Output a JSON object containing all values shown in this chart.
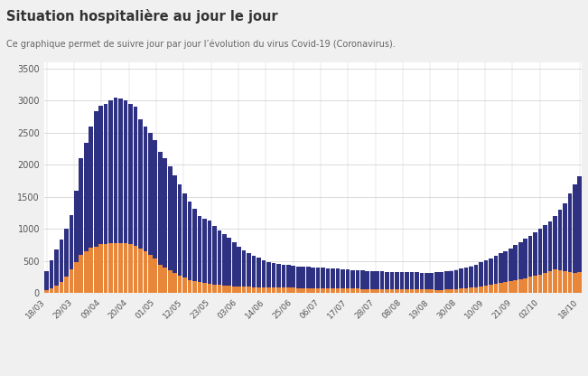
{
  "title": "Situation hospitalière au jour le jour",
  "subtitle": "Ce graphique permet de suivre jour par jour l’évolution du virus Covid-19 (Coronavirus).",
  "bg_color": "#f0f0f0",
  "plot_bg_color": "#ffffff",
  "bar_color_hosp": "#2e3182",
  "bar_color_rea": "#e8873a",
  "lissage_hosp_color": "#c8cae8",
  "lissage_rea_color": "#f5d0a9",
  "lissage_hosp_edge": "#9999cc",
  "lissage_rea_edge": "#e8a060",
  "x_labels": [
    "18/03",
    "29/03",
    "09/04",
    "20/04",
    "01/05",
    "12/05",
    "23/05",
    "03/06",
    "14/06",
    "25/06",
    "06/07",
    "17/07",
    "28/07",
    "08/08",
    "19/08",
    "30/08",
    "10/09",
    "21/09",
    "02/10",
    "18/10"
  ],
  "label_days": [
    0,
    11,
    22,
    33,
    44,
    55,
    66,
    77,
    88,
    99,
    110,
    121,
    132,
    143,
    154,
    165,
    176,
    187,
    198,
    214
  ],
  "total_days": 214,
  "ylim": [
    0,
    3600
  ],
  "yticks": [
    0,
    500,
    1000,
    1500,
    2000,
    2500,
    3000,
    3500
  ],
  "hosp": [
    350,
    520,
    680,
    830,
    1000,
    1210,
    1600,
    2100,
    2340,
    2600,
    2830,
    2920,
    2950,
    3010,
    3050,
    3030,
    3010,
    2950,
    2900,
    2710,
    2600,
    2500,
    2390,
    2200,
    2100,
    1980,
    1840,
    1700,
    1550,
    1430,
    1310,
    1200,
    1160,
    1130,
    1050,
    980,
    920,
    860,
    800,
    730,
    670,
    620,
    580,
    550,
    520,
    490,
    470,
    460,
    450,
    440,
    430,
    420,
    415,
    410,
    405,
    400,
    395,
    390,
    385,
    380,
    375,
    370,
    365,
    360,
    355,
    350,
    345,
    340,
    338,
    336,
    334,
    332,
    330,
    328,
    326,
    324,
    322,
    320,
    320,
    325,
    330,
    340,
    350,
    365,
    380,
    400,
    420,
    450,
    480,
    510,
    545,
    580,
    620,
    660,
    700,
    750,
    800,
    850,
    900,
    950,
    1000,
    1060,
    1120,
    1200,
    1300,
    1400,
    1550,
    1700,
    1820
  ],
  "rea": [
    50,
    80,
    120,
    180,
    260,
    370,
    480,
    600,
    660,
    710,
    720,
    760,
    770,
    780,
    785,
    782,
    780,
    760,
    740,
    700,
    650,
    600,
    540,
    450,
    400,
    360,
    320,
    280,
    240,
    210,
    190,
    175,
    160,
    150,
    140,
    130,
    120,
    115,
    110,
    106,
    102,
    100,
    98,
    96,
    95,
    93,
    91,
    90,
    88,
    86,
    85,
    84,
    82,
    81,
    80,
    79,
    78,
    77,
    76,
    75,
    74,
    73,
    72,
    71,
    70,
    70,
    69,
    68,
    67,
    66,
    65,
    64,
    63,
    62,
    61,
    60,
    59,
    58,
    57,
    56,
    55,
    58,
    62,
    67,
    73,
    80,
    88,
    97,
    107,
    118,
    130,
    143,
    158,
    170,
    185,
    200,
    218,
    235,
    255,
    275,
    295,
    320,
    345,
    370,
    355,
    340,
    325,
    310,
    330,
    355,
    380
  ],
  "lissage_hosp": [
    300,
    490,
    650,
    800,
    970,
    1180,
    1570,
    2060,
    2310,
    2570,
    2800,
    2900,
    2940,
    3000,
    3040,
    3020,
    3000,
    2940,
    2880,
    2700,
    2580,
    2480,
    2370,
    2190,
    2080,
    1960,
    1820,
    1680,
    1540,
    1420,
    1300,
    1190,
    1150,
    1120,
    1040,
    970,
    910,
    850,
    790,
    720,
    660,
    610,
    570,
    540,
    510,
    480,
    460,
    450,
    440,
    430,
    420,
    412,
    407,
    402,
    398,
    393,
    388,
    383,
    378,
    373,
    368,
    363,
    358,
    353,
    348,
    343,
    338,
    333,
    330,
    328,
    326,
    324,
    322,
    320,
    318,
    316,
    314,
    312,
    318,
    323,
    330,
    342,
    354,
    368,
    383,
    402,
    422,
    450,
    478,
    508,
    543,
    578,
    618,
    658,
    698,
    748,
    798,
    848,
    898,
    948,
    998,
    1058,
    1118,
    1198,
    1298,
    1398,
    1548,
    1698,
    1810
  ],
  "lissage_rea": [
    40,
    70,
    110,
    170,
    250,
    360,
    470,
    590,
    650,
    700,
    710,
    750,
    760,
    770,
    775,
    772,
    770,
    750,
    730,
    690,
    640,
    590,
    530,
    440,
    390,
    350,
    310,
    270,
    230,
    200,
    180,
    165,
    150,
    140,
    130,
    120,
    112,
    107,
    102,
    98,
    94,
    92,
    90,
    88,
    87,
    85,
    83,
    82,
    80,
    78,
    77,
    76,
    74,
    73,
    72,
    71,
    70,
    69,
    68,
    67,
    66,
    65,
    64,
    63,
    62,
    62,
    61,
    60,
    59,
    58,
    57,
    56,
    55,
    54,
    53,
    52,
    51,
    50,
    49,
    48,
    47,
    50,
    54,
    59,
    65,
    72,
    80,
    89,
    99,
    110,
    122,
    135,
    150,
    162,
    177,
    192,
    210,
    227,
    247,
    267,
    287,
    312,
    337,
    362,
    347,
    332,
    317,
    302,
    322,
    347,
    372
  ]
}
